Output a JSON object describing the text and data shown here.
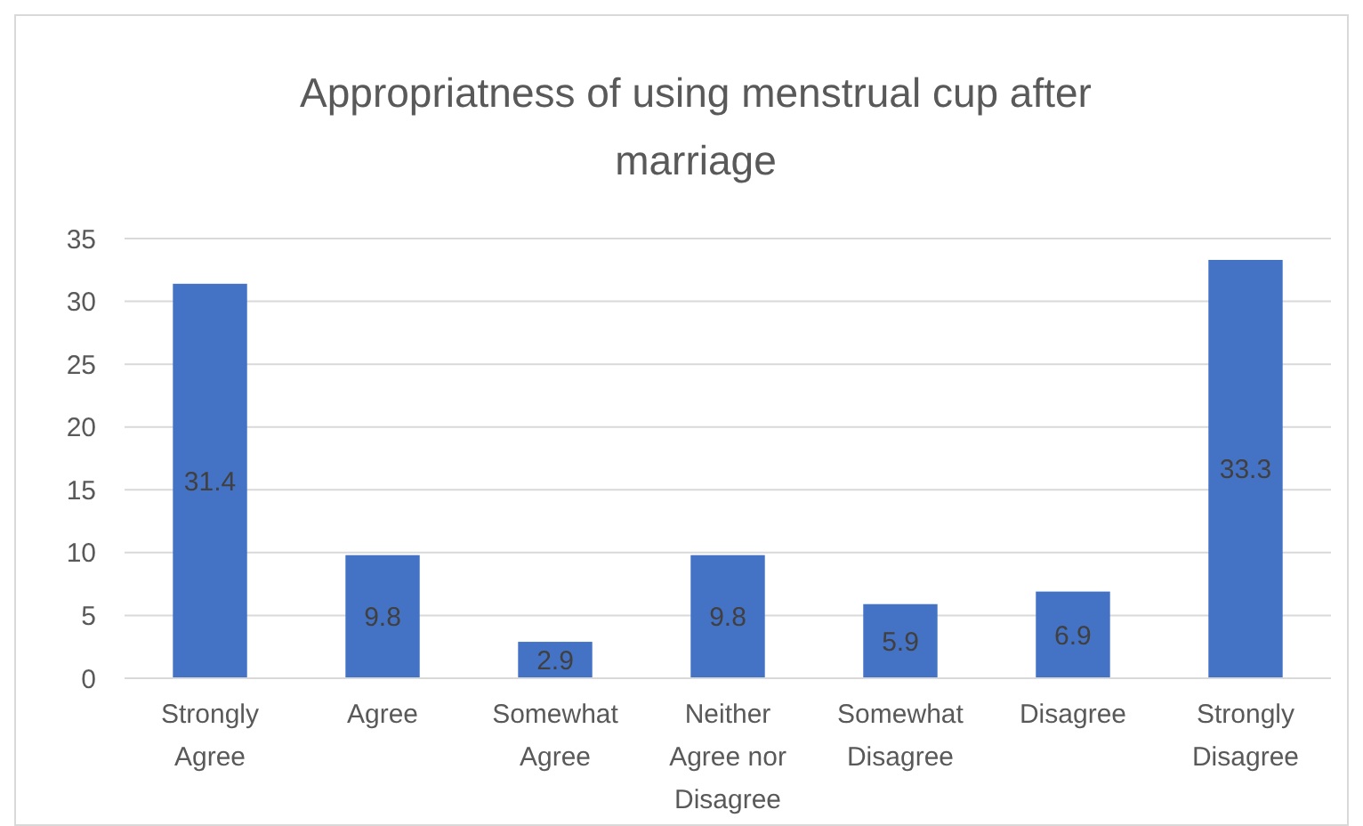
{
  "chart_data": {
    "type": "bar",
    "title": "Appropriatness of using menstrual cup after marriage",
    "categories": [
      "Strongly Agree",
      "Agree",
      "Somewhat Agree",
      "Neither Agree nor Disagree",
      "Somewhat Disagree",
      "Disagree",
      "Strongly Disagree"
    ],
    "values": [
      31.4,
      9.8,
      2.9,
      9.8,
      5.9,
      6.9,
      33.3
    ],
    "color": "#4472c4",
    "ylim": [
      0,
      35
    ],
    "yticks": [
      0,
      5,
      10,
      15,
      20,
      25,
      30,
      35
    ],
    "grid": "y",
    "data_labels": true
  }
}
